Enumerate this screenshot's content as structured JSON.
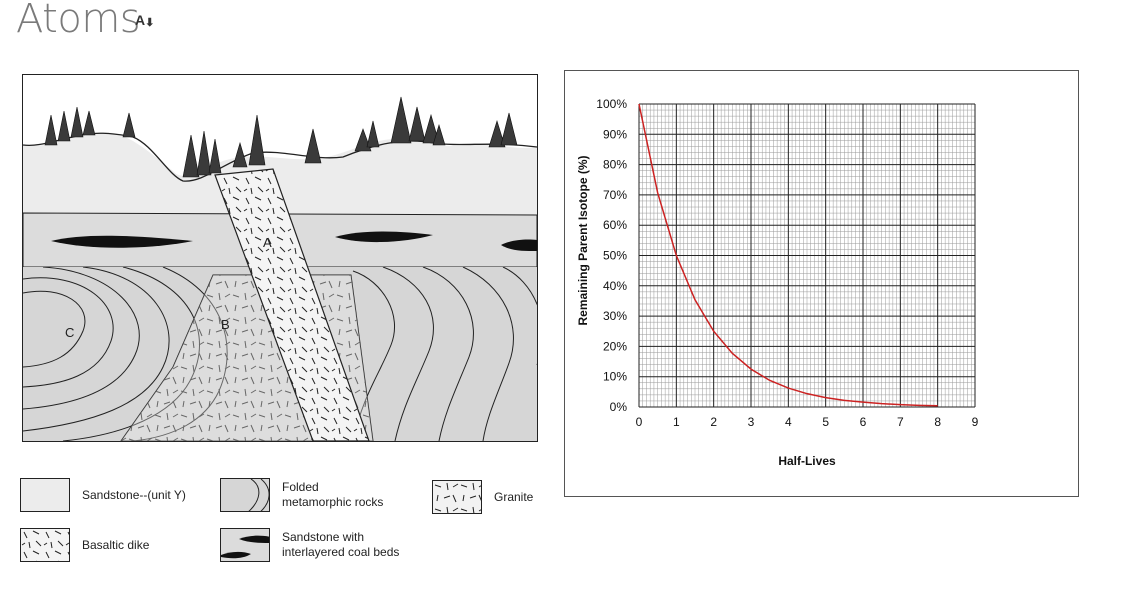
{
  "page": {
    "title": "Atoms",
    "font_size_icon": "font-size-icon"
  },
  "diagram": {
    "labels": {
      "a": "A",
      "b": "B",
      "c": "C"
    }
  },
  "legend": [
    {
      "key": "sandstone",
      "label": "Sandstone--(unit Y)"
    },
    {
      "key": "folded",
      "label": "Folded\nmetamorphic rocks"
    },
    {
      "key": "granite",
      "label": "Granite"
    },
    {
      "key": "dike",
      "label": "Basaltic dike"
    },
    {
      "key": "coal",
      "label": "Sandstone with\ninterlayered coal beds"
    }
  ],
  "chart_data": {
    "type": "line",
    "title": "",
    "xlabel": "Half-Lives",
    "ylabel": "Remaining Parent Isotope (%)",
    "xlim": [
      0,
      9
    ],
    "ylim": [
      0,
      100
    ],
    "x_ticks": [
      "0",
      "1",
      "2",
      "3",
      "4",
      "5",
      "6",
      "7",
      "8",
      "9"
    ],
    "y_ticks": [
      "0%",
      "10%",
      "20%",
      "30%",
      "40%",
      "50%",
      "60%",
      "70%",
      "80%",
      "90%",
      "100%"
    ],
    "grid": true,
    "series": [
      {
        "color": "#cc2222",
        "x": [
          0,
          0.5,
          1,
          1.5,
          2,
          2.5,
          3,
          3.5,
          4,
          4.5,
          5,
          5.5,
          6,
          6.5,
          7,
          7.5,
          8
        ],
        "y": [
          100,
          70.7,
          50,
          35.4,
          25,
          17.7,
          12.5,
          8.8,
          6.25,
          4.4,
          3.1,
          2.2,
          1.6,
          1.1,
          0.8,
          0.55,
          0.4
        ]
      }
    ]
  }
}
